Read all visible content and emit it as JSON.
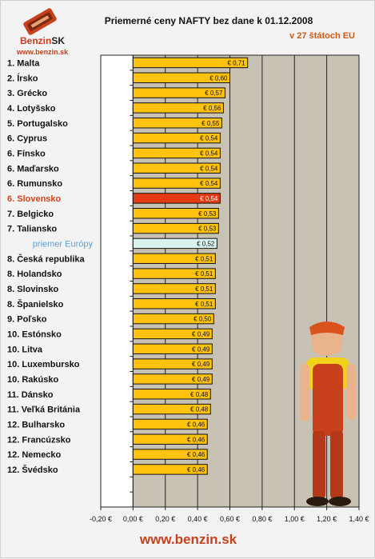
{
  "header": {
    "logo_word": "Benzin",
    "logo_sk": "SK",
    "logo_url": "www.benzin.sk",
    "title": "Priemerné ceny NAFTY bez dane k 01.12.2008",
    "subtitle": "v 27 štátoch EU"
  },
  "footer": {
    "url": "www.benzin.sk"
  },
  "colors": {
    "bar": "#ffc20e",
    "bar_highlight": "#e63a14",
    "bar_average": "#d9f3ee",
    "plot_bg": "#c8c2b4",
    "label_highlight": "#d2461c",
    "label_average": "#5aa2d6"
  },
  "chart_data": {
    "type": "bar",
    "orientation": "horizontal",
    "title": "Priemerné ceny NAFTY bez dane k 01.12.2008",
    "subtitle": "v 27 štátoch EU",
    "xlim": [
      -0.2,
      1.4
    ],
    "x_ticks": [
      "-0,20 €",
      "0,00 €",
      "0,20 €",
      "0,40 €",
      "0,60 €",
      "0,80 €",
      "1,00 €",
      "1,20 €",
      "1,40 €"
    ],
    "x_tick_values": [
      -0.2,
      0.0,
      0.2,
      0.4,
      0.6,
      0.8,
      1.0,
      1.2,
      1.4
    ],
    "grid": true,
    "categories": [
      {
        "label": "1. Malta",
        "value": 0.71,
        "value_label": "€ 0,71",
        "style": "normal"
      },
      {
        "label": "2. Írsko",
        "value": 0.6,
        "value_label": "€ 0,60",
        "style": "normal"
      },
      {
        "label": "3. Grécko",
        "value": 0.57,
        "value_label": "€ 0,57",
        "style": "normal"
      },
      {
        "label": "4. Lotyšsko",
        "value": 0.56,
        "value_label": "€ 0,56",
        "style": "normal"
      },
      {
        "label": "5. Portugalsko",
        "value": 0.55,
        "value_label": "€ 0,55",
        "style": "normal"
      },
      {
        "label": "6. Cyprus",
        "value": 0.54,
        "value_label": "€ 0,54",
        "style": "normal"
      },
      {
        "label": "6. Fínsko",
        "value": 0.54,
        "value_label": "€ 0,54",
        "style": "normal"
      },
      {
        "label": "6. Maďarsko",
        "value": 0.54,
        "value_label": "€ 0,54",
        "style": "normal"
      },
      {
        "label": "6. Rumunsko",
        "value": 0.54,
        "value_label": "€ 0,54",
        "style": "normal"
      },
      {
        "label": "6. Slovensko",
        "value": 0.54,
        "value_label": "€ 0,54",
        "style": "highlight"
      },
      {
        "label": "7. Belgicko",
        "value": 0.53,
        "value_label": "€ 0,53",
        "style": "normal"
      },
      {
        "label": "7. Taliansko",
        "value": 0.53,
        "value_label": "€ 0,53",
        "style": "normal"
      },
      {
        "label": "priemer Európy",
        "value": 0.52,
        "value_label": "€ 0,52",
        "style": "average"
      },
      {
        "label": "8. Česká republika",
        "value": 0.51,
        "value_label": "€ 0,51",
        "style": "normal"
      },
      {
        "label": "8. Holandsko",
        "value": 0.51,
        "value_label": "€ 0,51",
        "style": "normal"
      },
      {
        "label": "8. Slovinsko",
        "value": 0.51,
        "value_label": "€ 0,51",
        "style": "normal"
      },
      {
        "label": "8. Španielsko",
        "value": 0.51,
        "value_label": "€ 0,51",
        "style": "normal"
      },
      {
        "label": "9. Poľsko",
        "value": 0.5,
        "value_label": "€ 0,50",
        "style": "normal"
      },
      {
        "label": "10. Estónsko",
        "value": 0.49,
        "value_label": "€ 0,49",
        "style": "normal"
      },
      {
        "label": "10. Litva",
        "value": 0.49,
        "value_label": "€ 0,49",
        "style": "normal"
      },
      {
        "label": "10. Luxembursko",
        "value": 0.49,
        "value_label": "€ 0,49",
        "style": "normal"
      },
      {
        "label": "10. Rakúsko",
        "value": 0.49,
        "value_label": "€ 0,49",
        "style": "normal"
      },
      {
        "label": "11. Dánsko",
        "value": 0.48,
        "value_label": "€ 0,48",
        "style": "normal"
      },
      {
        "label": "11. Veľká Británia",
        "value": 0.48,
        "value_label": "€ 0,48",
        "style": "normal"
      },
      {
        "label": "12. Bulharsko",
        "value": 0.46,
        "value_label": "€ 0,46",
        "style": "normal"
      },
      {
        "label": "12. Francúzsko",
        "value": 0.46,
        "value_label": "€ 0,46",
        "style": "normal"
      },
      {
        "label": "12. Nemecko",
        "value": 0.46,
        "value_label": "€ 0,46",
        "style": "normal"
      },
      {
        "label": "12. Švédsko",
        "value": 0.46,
        "value_label": "€ 0,46",
        "style": "normal"
      }
    ],
    "empty_rows_after": 2
  }
}
